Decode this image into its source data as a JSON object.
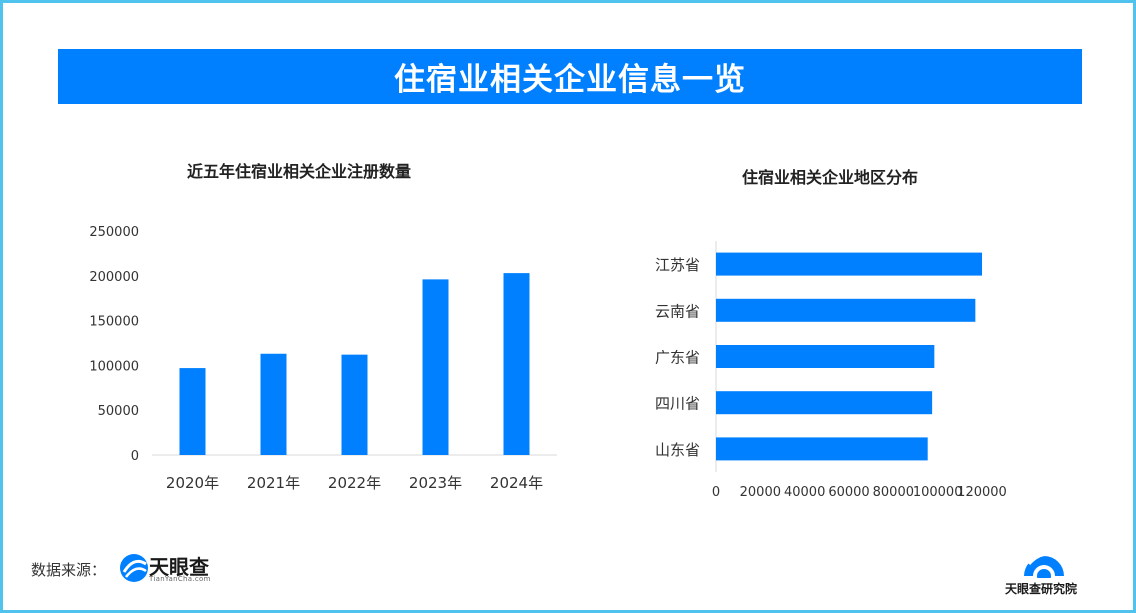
{
  "banner": {
    "title": "住宿业相关企业信息一览"
  },
  "source": {
    "label": "数据来源：",
    "logo_name": "天眼查",
    "logo_sub": "TianYanCha.com"
  },
  "institute": {
    "name": "天眼查研究院"
  },
  "colors": {
    "accent": "#0080ff",
    "border": "#4fc2ee"
  },
  "chart_data": [
    {
      "type": "bar",
      "title": "近五年住宿业相关企业注册数量",
      "categories": [
        "2020年",
        "2021年",
        "2022年",
        "2023年",
        "2024年"
      ],
      "values": [
        97000,
        113000,
        112000,
        196000,
        203000
      ],
      "ylim": [
        0,
        250000
      ],
      "yticks": [
        "250000",
        "200000",
        "150000",
        "100000",
        "50000",
        "0"
      ],
      "grid": false,
      "legend": "none",
      "color": "#0080ff"
    },
    {
      "type": "bar",
      "orientation": "horizontal",
      "title": "住宿业相关企业地区分布",
      "categories": [
        "江苏省",
        "云南省",
        "广东省",
        "四川省",
        "山东省"
      ],
      "values": [
        120000,
        117000,
        98500,
        97500,
        95500
      ],
      "xlim": [
        0,
        120000
      ],
      "xticks": [
        "0",
        "20000",
        "40000",
        "60000",
        "80000",
        "100000",
        "120000"
      ],
      "grid": false,
      "legend": "none",
      "color": "#0080ff"
    }
  ]
}
